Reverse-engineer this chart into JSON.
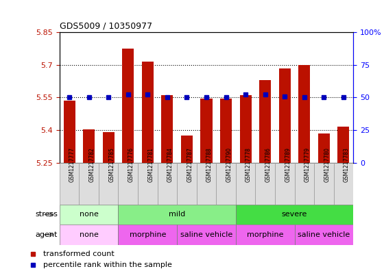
{
  "title": "GDS5009 / 10350977",
  "samples": [
    "GSM1217777",
    "GSM1217782",
    "GSM1217785",
    "GSM1217776",
    "GSM1217781",
    "GSM1217784",
    "GSM1217787",
    "GSM1217788",
    "GSM1217790",
    "GSM1217778",
    "GSM1217786",
    "GSM1217789",
    "GSM1217779",
    "GSM1217780",
    "GSM1217783"
  ],
  "bar_values": [
    5.535,
    5.405,
    5.39,
    5.775,
    5.715,
    5.56,
    5.375,
    5.545,
    5.545,
    5.56,
    5.63,
    5.685,
    5.7,
    5.385,
    5.415
  ],
  "percentile_values": [
    5.55,
    5.55,
    5.55,
    5.565,
    5.565,
    5.55,
    5.55,
    5.55,
    5.55,
    5.565,
    5.565,
    5.555,
    5.55,
    5.55,
    5.55
  ],
  "ylim": [
    5.25,
    5.85
  ],
  "yticks": [
    5.25,
    5.4,
    5.55,
    5.7,
    5.85
  ],
  "right_yticks": [
    0,
    25,
    50,
    75,
    100
  ],
  "right_ytick_positions": [
    5.25,
    5.4,
    5.55,
    5.7,
    5.85
  ],
  "bar_color": "#BB1100",
  "dot_color": "#0000BB",
  "grid_color": "#000000",
  "stress_groups": [
    {
      "label": "none",
      "start": 0,
      "end": 3,
      "color": "#CCFFCC"
    },
    {
      "label": "mild",
      "start": 3,
      "end": 9,
      "color": "#88EE88"
    },
    {
      "label": "severe",
      "start": 9,
      "end": 15,
      "color": "#44DD44"
    }
  ],
  "agent_groups": [
    {
      "label": "none",
      "start": 0,
      "end": 3,
      "color": "#FFCCFF"
    },
    {
      "label": "morphine",
      "start": 3,
      "end": 6,
      "color": "#EE66EE"
    },
    {
      "label": "saline vehicle",
      "start": 6,
      "end": 9,
      "color": "#EE66EE"
    },
    {
      "label": "morphine",
      "start": 9,
      "end": 12,
      "color": "#EE66EE"
    },
    {
      "label": "saline vehicle",
      "start": 12,
      "end": 15,
      "color": "#EE66EE"
    }
  ],
  "legend_items": [
    {
      "label": "transformed count",
      "color": "#BB1100"
    },
    {
      "label": "percentile rank within the sample",
      "color": "#0000BB"
    }
  ],
  "bar_width": 0.6,
  "base_value": 5.25,
  "stress_label": "stress",
  "agent_label": "agent",
  "xtick_bg_color": "#DDDDDD"
}
